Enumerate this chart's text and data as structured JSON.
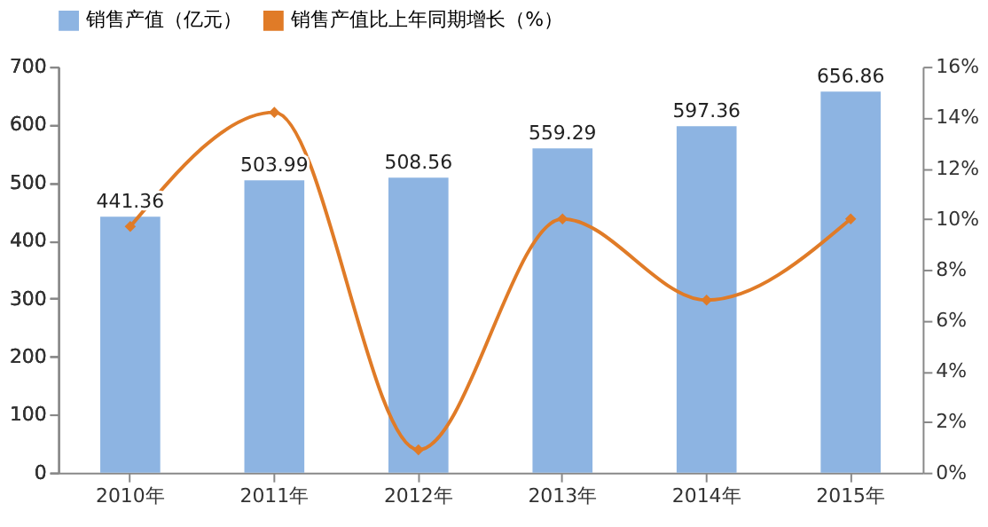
{
  "chart_data": {
    "type": "bar",
    "categories": [
      "2010年",
      "2011年",
      "2012年",
      "2013年",
      "2014年",
      "2015年"
    ],
    "series": [
      {
        "name": "销售产值（亿元）",
        "color": "#8db4e2",
        "values": [
          441.36,
          503.99,
          508.56,
          559.29,
          597.36,
          656.86
        ]
      },
      {
        "name": "销售产值比上年同期增长（%）",
        "type": "line",
        "axis": "y2",
        "color": "#e07b27",
        "values": [
          9.7,
          14.2,
          0.9,
          10.0,
          6.8,
          10.0
        ]
      }
    ],
    "ylim": [
      0,
      700
    ],
    "yticks": [
      0,
      100,
      200,
      300,
      400,
      500,
      600,
      700
    ],
    "y2lim": [
      0,
      16
    ],
    "y2ticks": [
      {
        "value": 0,
        "label": "0%"
      },
      {
        "value": 2,
        "label": "2%"
      },
      {
        "value": 4,
        "label": "4%"
      },
      {
        "value": 6,
        "label": "6%"
      },
      {
        "value": 8,
        "label": "8%"
      },
      {
        "value": 10,
        "label": "10%"
      },
      {
        "value": 12,
        "label": "12%"
      },
      {
        "value": 14,
        "label": "14%"
      },
      {
        "value": 16,
        "label": "16%"
      }
    ],
    "value_labels": [
      "441.36",
      "503.99",
      "508.56",
      "559.29",
      "597.36",
      "656.86"
    ],
    "marker": "diamond",
    "legend": "top",
    "grid": false
  }
}
